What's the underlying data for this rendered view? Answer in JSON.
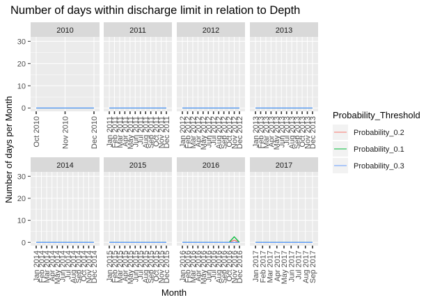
{
  "chart_data": {
    "type": "line",
    "title": "Number of days within discharge limit in relation to Depth",
    "xlabel": "Month",
    "ylabel": "Number of days per Month",
    "ylim": [
      -1.5,
      32
    ],
    "yticks": [
      0,
      10,
      20,
      30
    ],
    "grid": true,
    "legend": {
      "title": "Probability_Threshold",
      "placement": "right",
      "entries": [
        "Probability_0.2",
        "Probability_0.1",
        "Probability_0.3"
      ]
    },
    "colors": {
      "Probability_0.2": "#F8766D",
      "Probability_0.1": "#00BA38",
      "Probability_0.3": "#619CFF",
      "panel_bg": "#EBEBEB",
      "strip_bg": "#D9D9D9",
      "grid": "#FFFFFF"
    },
    "facets": [
      {
        "year": "2010",
        "months": [
          "Oct 2010",
          "Nov 2010",
          "Dec 2010"
        ],
        "series": [
          {
            "name": "Probability_0.2",
            "values": [
              0,
              0,
              0
            ]
          },
          {
            "name": "Probability_0.1",
            "values": [
              0,
              0,
              0
            ]
          },
          {
            "name": "Probability_0.3",
            "values": [
              0,
              0,
              0
            ]
          }
        ]
      },
      {
        "year": "2011",
        "months": [
          "Jan 2011",
          "Feb 2011",
          "Mar 2011",
          "Apr 2011",
          "May 2011",
          "Jun 2011",
          "Jul 2011",
          "Aug 2011",
          "Sep 2011",
          "Oct 2011",
          "Nov 2011",
          "Dec 2011"
        ],
        "series": [
          {
            "name": "Probability_0.2",
            "values": [
              0,
              0,
              0,
              0,
              0,
              0,
              0,
              0,
              0,
              0,
              0,
              0
            ]
          },
          {
            "name": "Probability_0.1",
            "values": [
              0,
              0,
              0,
              0,
              0,
              0,
              0,
              0,
              0,
              0,
              0,
              0
            ]
          },
          {
            "name": "Probability_0.3",
            "values": [
              0,
              0,
              0,
              0,
              0,
              0,
              0,
              0,
              0,
              0,
              0,
              0
            ]
          }
        ]
      },
      {
        "year": "2012",
        "months": [
          "Jan 2012",
          "Feb 2012",
          "Mar 2012",
          "Apr 2012",
          "May 2012",
          "Jun 2012",
          "Jul 2012",
          "Aug 2012",
          "Sep 2012",
          "Oct 2012",
          "Nov 2012",
          "Dec 2012"
        ],
        "series": [
          {
            "name": "Probability_0.2",
            "values": [
              0,
              0,
              0,
              0,
              0,
              0,
              0,
              0,
              0,
              0,
              0,
              0
            ]
          },
          {
            "name": "Probability_0.1",
            "values": [
              0,
              0,
              0,
              0,
              0,
              0,
              0,
              0,
              0,
              0,
              0,
              0
            ]
          },
          {
            "name": "Probability_0.3",
            "values": [
              0,
              0,
              0,
              0,
              0,
              0,
              0,
              0,
              0,
              0,
              0,
              0
            ]
          }
        ]
      },
      {
        "year": "2013",
        "months": [
          "Jan 2013",
          "Feb 2013",
          "Mar 2013",
          "Apr 2013",
          "May 2013",
          "Jun 2013",
          "Jul 2013",
          "Aug 2013",
          "Sep 2013",
          "Oct 2013",
          "Nov 2013",
          "Dec 2013"
        ],
        "series": [
          {
            "name": "Probability_0.2",
            "values": [
              0,
              0,
              0,
              0,
              0,
              0,
              0,
              0,
              0,
              0,
              0,
              0
            ]
          },
          {
            "name": "Probability_0.1",
            "values": [
              0,
              0,
              0,
              0,
              0,
              0,
              0,
              0,
              0,
              0,
              0,
              0
            ]
          },
          {
            "name": "Probability_0.3",
            "values": [
              0,
              0,
              0,
              0,
              0,
              0,
              0,
              0,
              0,
              0,
              0,
              0
            ]
          }
        ]
      },
      {
        "year": "2014",
        "months": [
          "Jan 2014",
          "Feb 2014",
          "Mar 2014",
          "Apr 2014",
          "May 2014",
          "Jun 2014",
          "Jul 2014",
          "Aug 2014",
          "Sep 2014",
          "Oct 2014",
          "Nov 2014",
          "Dec 2014"
        ],
        "series": [
          {
            "name": "Probability_0.2",
            "values": [
              0,
              0,
              0,
              0,
              0,
              0,
              0,
              0,
              0,
              0,
              0,
              0
            ]
          },
          {
            "name": "Probability_0.1",
            "values": [
              0,
              0,
              0,
              0,
              0,
              0,
              0,
              0,
              0,
              0,
              0,
              0
            ]
          },
          {
            "name": "Probability_0.3",
            "values": [
              0,
              0,
              0,
              0,
              0,
              0,
              0,
              0,
              0,
              0,
              0,
              0
            ]
          }
        ]
      },
      {
        "year": "2015",
        "months": [
          "Jan 2015",
          "Feb 2015",
          "Mar 2015",
          "Apr 2015",
          "May 2015",
          "Jun 2015",
          "Jul 2015",
          "Aug 2015",
          "Sep 2015",
          "Oct 2015",
          "Nov 2015",
          "Dec 2015"
        ],
        "series": [
          {
            "name": "Probability_0.2",
            "values": [
              0,
              0,
              0,
              0,
              0,
              0,
              0,
              0,
              0,
              0,
              0,
              0
            ]
          },
          {
            "name": "Probability_0.1",
            "values": [
              0,
              0,
              0,
              0,
              0,
              0,
              0,
              0,
              0,
              0,
              0,
              0
            ]
          },
          {
            "name": "Probability_0.3",
            "values": [
              0,
              0,
              0,
              0,
              0,
              0,
              0,
              0,
              0,
              0,
              0,
              0
            ]
          }
        ]
      },
      {
        "year": "2016",
        "months": [
          "Jan 2016",
          "Feb 2016",
          "Mar 2016",
          "Apr 2016",
          "May 2016",
          "Jun 2016",
          "Jul 2016",
          "Aug 2016",
          "Sep 2016",
          "Oct 2016",
          "Nov 2016",
          "Dec 2016"
        ],
        "series": [
          {
            "name": "Probability_0.2",
            "values": [
              0,
              0,
              0,
              0,
              0,
              0,
              0,
              0,
              0,
              0,
              1,
              0
            ]
          },
          {
            "name": "Probability_0.1",
            "values": [
              0,
              0,
              0,
              0,
              0,
              0,
              0,
              0,
              0,
              0,
              2.5,
              0
            ]
          },
          {
            "name": "Probability_0.3",
            "values": [
              0,
              0,
              0,
              0,
              0,
              0,
              0,
              0,
              0,
              0,
              0,
              0
            ]
          }
        ]
      },
      {
        "year": "2017",
        "months": [
          "Jan 2017",
          "Feb 2017",
          "Mar 2017",
          "Apr 2017",
          "May 2017",
          "Jun 2017",
          "Jul 2017",
          "Aug 2017",
          "Sep 2017"
        ],
        "series": [
          {
            "name": "Probability_0.2",
            "values": [
              0,
              0,
              0,
              0,
              0,
              0,
              0,
              0,
              0
            ]
          },
          {
            "name": "Probability_0.1",
            "values": [
              0,
              0,
              0,
              0,
              0,
              0,
              0,
              0,
              0
            ]
          },
          {
            "name": "Probability_0.3",
            "values": [
              0,
              0,
              0,
              0,
              0,
              0,
              0,
              0,
              0
            ]
          }
        ]
      }
    ]
  }
}
